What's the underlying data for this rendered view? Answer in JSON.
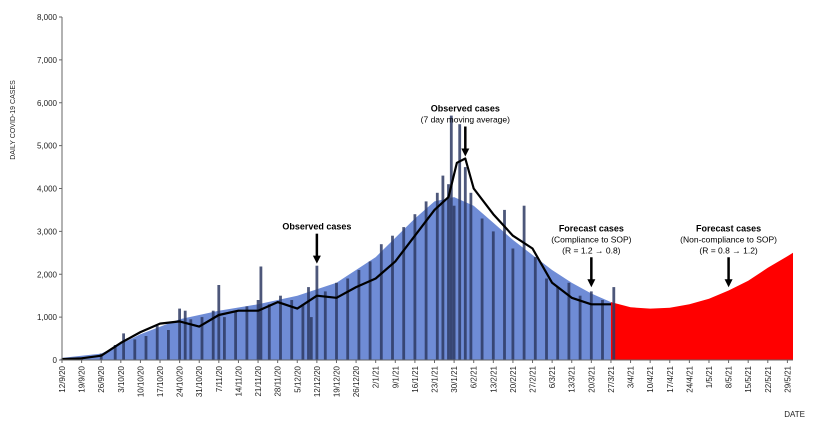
{
  "chart_data": {
    "type": "bar",
    "ylabel": "DAILY COVID-19 CASES",
    "xlabel": "DATE",
    "ylim": [
      0,
      8000
    ],
    "yticks": [
      0,
      1000,
      2000,
      3000,
      4000,
      5000,
      6000,
      7000,
      8000
    ],
    "ytick_labels": [
      "0",
      "1,000",
      "2,000",
      "3,000",
      "4,000",
      "5,000",
      "6,000",
      "7,000",
      "8,000"
    ],
    "xlim": [
      "2020-09-12",
      "2021-05-31"
    ],
    "xticks": [
      "2020-09-12",
      "2020-09-19",
      "2020-09-26",
      "2020-10-03",
      "2020-10-10",
      "2020-10-17",
      "2020-10-24",
      "2020-10-31",
      "2020-11-07",
      "2020-11-14",
      "2020-11-21",
      "2020-11-28",
      "2020-12-05",
      "2020-12-12",
      "2020-12-19",
      "2020-12-26",
      "2021-01-02",
      "2021-01-09",
      "2021-01-16",
      "2021-01-23",
      "2021-01-30",
      "2021-02-06",
      "2021-02-13",
      "2021-02-20",
      "2021-02-27",
      "2021-03-06",
      "2021-03-13",
      "2021-03-20",
      "2021-03-27",
      "2021-04-03",
      "2021-04-10",
      "2021-04-17",
      "2021-04-24",
      "2021-05-01",
      "2021-05-08",
      "2021-05-15",
      "2021-05-22",
      "2021-05-29"
    ],
    "xtick_labels": [
      "12/9/20",
      "19/9/20",
      "26/9/20",
      "3/10/20",
      "10/10/20",
      "17/10/20",
      "24/10/20",
      "31/10/20",
      "7/11/20",
      "14/11/20",
      "21/11/20",
      "28/11/20",
      "5/12/20",
      "12/12/20",
      "19/12/20",
      "26/12/20",
      "2/1/21",
      "9/1/21",
      "16/1/21",
      "23/1/21",
      "30/1/21",
      "6/2/21",
      "13/2/21",
      "20/2/21",
      "27/2/21",
      "6/3/21",
      "13/3/21",
      "20/3/21",
      "27/3/21",
      "3/4/21",
      "10/4/21",
      "17/4/21",
      "24/4/21",
      "1/5/21",
      "8/5/21",
      "15/5/21",
      "22/5/21",
      "29/5/21"
    ],
    "series": [
      {
        "kind": "bar",
        "color": "#2e3a63",
        "x": [
          "2020-09-12",
          "2020-09-19",
          "2020-09-26",
          "2020-10-01",
          "2020-10-04",
          "2020-10-08",
          "2020-10-12",
          "2020-10-16",
          "2020-10-20",
          "2020-10-24",
          "2020-10-26",
          "2020-10-28",
          "2020-11-01",
          "2020-11-05",
          "2020-11-07",
          "2020-11-09",
          "2020-11-13",
          "2020-11-17",
          "2020-11-21",
          "2020-11-22",
          "2020-11-25",
          "2020-11-29",
          "2020-12-03",
          "2020-12-07",
          "2020-12-09",
          "2020-12-10",
          "2020-12-12",
          "2020-12-15",
          "2020-12-19",
          "2020-12-23",
          "2020-12-27",
          "2020-12-31",
          "2021-01-04",
          "2021-01-08",
          "2021-01-12",
          "2021-01-16",
          "2021-01-20",
          "2021-01-24",
          "2021-01-26",
          "2021-01-28",
          "2021-01-29",
          "2021-01-30",
          "2021-02-01",
          "2021-02-03",
          "2021-02-05",
          "2021-02-09",
          "2021-02-13",
          "2021-02-17",
          "2021-02-20",
          "2021-02-24",
          "2021-02-28",
          "2021-03-04",
          "2021-03-08",
          "2021-03-12",
          "2021-03-16",
          "2021-03-20",
          "2021-03-24",
          "2021-03-28"
        ],
        "values": [
          30,
          60,
          150,
          350,
          620,
          480,
          560,
          800,
          700,
          1200,
          1150,
          950,
          1000,
          1150,
          1750,
          1000,
          1150,
          1250,
          1400,
          2180,
          1300,
          1500,
          1400,
          1300,
          1700,
          1000,
          2200,
          1600,
          1800,
          1900,
          2100,
          2300,
          2700,
          2900,
          3100,
          3400,
          3700,
          3900,
          4300,
          4100,
          5700,
          3600,
          5500,
          4500,
          3900,
          3300,
          3000,
          3500,
          2600,
          3600,
          2400,
          1900,
          1700,
          1800,
          1500,
          1600,
          1400,
          1700
        ]
      },
      {
        "name": "Observed cases (7 day moving average)",
        "kind": "line",
        "color": "#000000",
        "x": [
          "2020-09-12",
          "2020-09-19",
          "2020-09-26",
          "2020-10-03",
          "2020-10-10",
          "2020-10-17",
          "2020-10-24",
          "2020-10-31",
          "2020-11-07",
          "2020-11-14",
          "2020-11-21",
          "2020-11-28",
          "2020-12-05",
          "2020-12-12",
          "2020-12-19",
          "2020-12-26",
          "2021-01-02",
          "2021-01-09",
          "2021-01-16",
          "2021-01-23",
          "2021-01-28",
          "2021-01-31",
          "2021-02-03",
          "2021-02-06",
          "2021-02-13",
          "2021-02-20",
          "2021-02-27",
          "2021-03-06",
          "2021-03-13",
          "2021-03-20",
          "2021-03-27"
        ],
        "values": [
          20,
          40,
          100,
          400,
          650,
          850,
          900,
          780,
          1050,
          1150,
          1150,
          1350,
          1200,
          1500,
          1450,
          1700,
          1900,
          2300,
          2900,
          3500,
          3800,
          4600,
          4700,
          4000,
          3400,
          2900,
          2600,
          1800,
          1450,
          1300,
          1300
        ]
      },
      {
        "name": "Forecast cases (Compliance to SOP) (R = 1.2 → 0.8)",
        "kind": "area",
        "color": "#6f8cd6",
        "x": [
          "2020-09-12",
          "2020-09-26",
          "2020-10-10",
          "2020-10-24",
          "2020-11-07",
          "2020-11-21",
          "2020-12-05",
          "2020-12-19",
          "2021-01-02",
          "2021-01-16",
          "2021-01-23",
          "2021-01-30",
          "2021-02-06",
          "2021-02-13",
          "2021-02-20",
          "2021-02-27",
          "2021-03-06",
          "2021-03-13",
          "2021-03-20",
          "2021-03-27",
          "2021-04-03",
          "2021-04-10",
          "2021-04-17",
          "2021-04-24",
          "2021-05-01",
          "2021-05-08",
          "2021-05-15",
          "2021-05-22",
          "2021-05-29",
          "2021-05-31"
        ],
        "values": [
          50,
          150,
          600,
          950,
          1150,
          1300,
          1500,
          1800,
          2400,
          3300,
          3700,
          3800,
          3600,
          3200,
          2800,
          2450,
          2100,
          1800,
          1550,
          1350,
          1150,
          1000,
          880,
          770,
          680,
          590,
          510,
          440,
          380,
          360
        ]
      },
      {
        "name": "Forecast cases (Non-compliance to SOP) (R = 0.8 → 1.2)",
        "kind": "area",
        "color": "#ff0000",
        "x": [
          "2021-03-27",
          "2021-04-03",
          "2021-04-10",
          "2021-04-17",
          "2021-04-24",
          "2021-05-01",
          "2021-05-08",
          "2021-05-15",
          "2021-05-22",
          "2021-05-29",
          "2021-05-31"
        ],
        "values": [
          1350,
          1230,
          1200,
          1220,
          1300,
          1430,
          1620,
          1850,
          2150,
          2420,
          2500
        ]
      }
    ],
    "annotations": [
      {
        "title": "Observed cases",
        "lines": [
          "(7 day moving average)"
        ],
        "arrow_to": {
          "x": "2021-02-03",
          "y": 4700
        }
      },
      {
        "title": "Observed cases",
        "lines": [],
        "arrow_to": {
          "x": "2020-12-12",
          "y": 2200
        }
      },
      {
        "title": "Forecast cases",
        "lines": [
          "(Compliance to SOP)",
          "(R = 1.2 → 0.8)"
        ],
        "arrow_to": {
          "x": "2021-03-20",
          "y": 1650
        }
      },
      {
        "title": "Forecast cases",
        "lines": [
          "(Non-compliance to SOP)",
          "(R = 0.8 → 1.2)"
        ],
        "arrow_to": {
          "x": "2021-05-08",
          "y": 1650
        }
      }
    ],
    "grid": false,
    "legend": "none"
  }
}
